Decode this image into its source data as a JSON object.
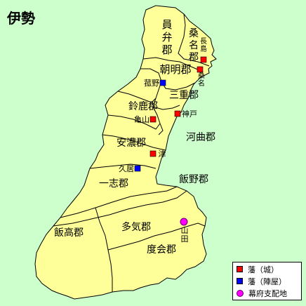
{
  "title": "伊勢",
  "colors": {
    "sea": "#ccffcc",
    "land": "#ffff99",
    "border": "#000000",
    "castle": "#ff0000",
    "jinya": "#0000ff",
    "bakufu": "#ff00ff"
  },
  "districts": [
    {
      "id": "inabe",
      "label": "員\n弁\n郡",
      "vertical": true
    },
    {
      "id": "kuwana",
      "label": "桑\n名\n郡",
      "vertical": true
    },
    {
      "id": "asake",
      "label": "朝明郡",
      "vertical": false
    },
    {
      "id": "mie",
      "label": "三重郡",
      "vertical": false
    },
    {
      "id": "suzuka",
      "label": "鈴鹿郡",
      "vertical": false
    },
    {
      "id": "kawawa",
      "label": "河曲郡",
      "vertical": false
    },
    {
      "id": "ano",
      "label": "安濃郡",
      "vertical": false
    },
    {
      "id": "ichishi",
      "label": "一志郡",
      "vertical": false
    },
    {
      "id": "iino",
      "label": "飯野郡",
      "vertical": false
    },
    {
      "id": "iitaka",
      "label": "飯高郡",
      "vertical": false
    },
    {
      "id": "taki",
      "label": "多気郡",
      "vertical": false
    },
    {
      "id": "watarai",
      "label": "度会郡",
      "vertical": false
    }
  ],
  "places": [
    {
      "id": "nagashima",
      "label": "長\n島",
      "type": "castle"
    },
    {
      "id": "kuwana-town",
      "label": "桑\n名",
      "type": "castle"
    },
    {
      "id": "komono",
      "label": "菰野",
      "type": "jinya"
    },
    {
      "id": "kambe",
      "label": "神戸",
      "type": "castle"
    },
    {
      "id": "kameyama",
      "label": "亀山",
      "type": "castle"
    },
    {
      "id": "tsu",
      "label": "津",
      "type": "castle"
    },
    {
      "id": "hisai",
      "label": "久居",
      "type": "jinya"
    },
    {
      "id": "yamada",
      "label": "山\n田",
      "type": "bakufu"
    }
  ],
  "legend": [
    {
      "type": "castle",
      "label": "藩（城）"
    },
    {
      "type": "jinya",
      "label": "藩（陣屋）"
    },
    {
      "type": "bakufu",
      "label": "幕府支配地"
    }
  ]
}
